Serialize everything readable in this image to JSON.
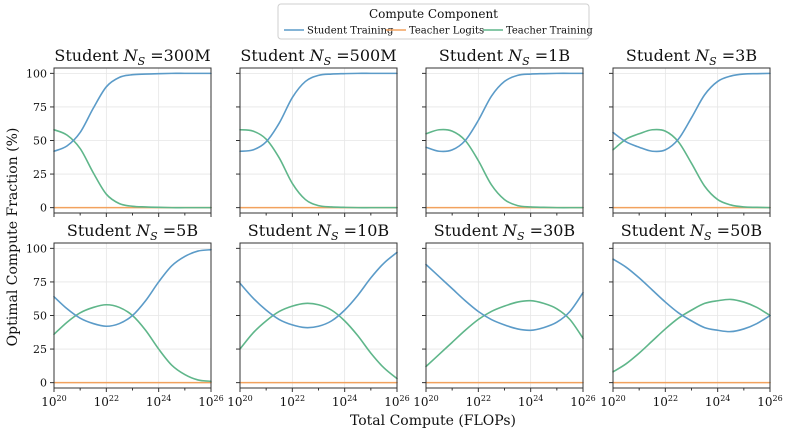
{
  "chart_data": {
    "type": "line",
    "figure_ylabel": "Optimal Compute Fraction (%)",
    "figure_xlabel": "Total Compute (FLOPs)",
    "legend": {
      "title": "Compute Component",
      "entries": [
        {
          "name": "Student Training",
          "color": "#5b9bc8"
        },
        {
          "name": "Teacher Logits",
          "color": "#f2a25e"
        },
        {
          "name": "Teacher Training",
          "color": "#5fb68a"
        }
      ],
      "placement": "top-center"
    },
    "xscale": "log",
    "xlim_exp": [
      20,
      26
    ],
    "ylim": [
      -4,
      104
    ],
    "x_ticks": [
      {
        "exp": 20,
        "base": "10",
        "sup": "20"
      },
      {
        "exp": 22,
        "base": "10",
        "sup": "22"
      },
      {
        "exp": 24,
        "base": "10",
        "sup": "24"
      },
      {
        "exp": 26,
        "base": "10",
        "sup": "26"
      }
    ],
    "y_ticks": [
      0,
      25,
      50,
      75,
      100
    ],
    "panels": [
      {
        "title_prefix": "Student ",
        "title_var": "N",
        "title_sub": "S",
        "title_suffix": " =300M",
        "x_exp": [
          20,
          20.5,
          21,
          21.5,
          22,
          22.5,
          23,
          23.5,
          24,
          24.5,
          25,
          25.5,
          26
        ],
        "series": [
          {
            "name": "Student Training",
            "values": [
              42,
              46,
              56,
              74,
              90,
              97,
              99,
              99.5,
              99.8,
              100,
              100,
              100,
              100
            ]
          },
          {
            "name": "Teacher Logits",
            "values": [
              0,
              0,
              0,
              0,
              0,
              0,
              0,
              0,
              0,
              0,
              0,
              0,
              0
            ]
          },
          {
            "name": "Teacher Training",
            "values": [
              58,
              54,
              44,
              26,
              10,
              3,
              1,
              0.5,
              0.2,
              0,
              0,
              0,
              0
            ]
          }
        ]
      },
      {
        "title_prefix": "Student ",
        "title_var": "N",
        "title_sub": "S",
        "title_suffix": " =500M",
        "x_exp": [
          20,
          20.5,
          21,
          21.5,
          22,
          22.5,
          23,
          23.5,
          24,
          24.5,
          25,
          25.5,
          26
        ],
        "series": [
          {
            "name": "Student Training",
            "values": [
              42,
              43,
              49,
              63,
              82,
              94,
              98.5,
              99.5,
              99.8,
              100,
              100,
              100,
              100
            ]
          },
          {
            "name": "Teacher Logits",
            "values": [
              0,
              0,
              0,
              0,
              0,
              0,
              0,
              0,
              0,
              0,
              0,
              0,
              0
            ]
          },
          {
            "name": "Teacher Training",
            "values": [
              58,
              57,
              51,
              37,
              18,
              6,
              1.5,
              0.5,
              0.2,
              0,
              0,
              0,
              0
            ]
          }
        ]
      },
      {
        "title_prefix": "Student ",
        "title_var": "N",
        "title_sub": "S",
        "title_suffix": " =1B",
        "x_exp": [
          20,
          20.5,
          21,
          21.5,
          22,
          22.5,
          23,
          23.5,
          24,
          24.5,
          25,
          25.5,
          26
        ],
        "series": [
          {
            "name": "Student Training",
            "values": [
              45,
              42,
              43,
              50,
              65,
              83,
              94,
              98.5,
              99.5,
              99.8,
              100,
              100,
              100
            ]
          },
          {
            "name": "Teacher Logits",
            "values": [
              0,
              0,
              0,
              0,
              0,
              0,
              0,
              0,
              0,
              0,
              0,
              0,
              0
            ]
          },
          {
            "name": "Teacher Training",
            "values": [
              55,
              58,
              57,
              50,
              35,
              17,
              6,
              1.5,
              0.5,
              0.2,
              0,
              0,
              0
            ]
          }
        ]
      },
      {
        "title_prefix": "Student ",
        "title_var": "N",
        "title_sub": "S",
        "title_suffix": " =3B",
        "x_exp": [
          20,
          20.5,
          21,
          21.5,
          22,
          22.5,
          23,
          23.5,
          24,
          24.5,
          25,
          25.5,
          26
        ],
        "series": [
          {
            "name": "Student Training",
            "values": [
              56,
              49,
              45,
              42,
              43,
              51,
              67,
              84,
              94,
              98,
              99.5,
              99.8,
              100
            ]
          },
          {
            "name": "Teacher Logits",
            "values": [
              0,
              0,
              0,
              0,
              0,
              0,
              0,
              0,
              0,
              0,
              0,
              0,
              0
            ]
          },
          {
            "name": "Teacher Training",
            "values": [
              43,
              51,
              55,
              58,
              57,
              49,
              33,
              16,
              6,
              2,
              0.5,
              0.2,
              0
            ]
          }
        ]
      },
      {
        "title_prefix": "Student ",
        "title_var": "N",
        "title_sub": "S",
        "title_suffix": " =5B",
        "x_exp": [
          20,
          20.5,
          21,
          21.5,
          22,
          22.5,
          23,
          23.5,
          24,
          24.5,
          25,
          25.5,
          26
        ],
        "series": [
          {
            "name": "Student Training",
            "values": [
              64,
              55,
              48,
              44,
              42,
              44,
              50,
              61,
              75,
              87,
              94,
              98,
              99
            ]
          },
          {
            "name": "Teacher Logits",
            "values": [
              0,
              0,
              0,
              0,
              0,
              0,
              0,
              0,
              0,
              0,
              0,
              0,
              0
            ]
          },
          {
            "name": "Teacher Training",
            "values": [
              36,
              45,
              52,
              56,
              58,
              56,
              50,
              39,
              25,
              13,
              6,
              2,
              1
            ]
          }
        ]
      },
      {
        "title_prefix": "Student ",
        "title_var": "N",
        "title_sub": "S",
        "title_suffix": " =10B",
        "x_exp": [
          20,
          20.5,
          21,
          21.5,
          22,
          22.5,
          23,
          23.5,
          24,
          24.5,
          25,
          25.5,
          26
        ],
        "series": [
          {
            "name": "Student Training",
            "values": [
              74,
              63,
              54,
              47,
              43,
              41,
              42,
              46,
              54,
              65,
              78,
              89,
              97
            ]
          },
          {
            "name": "Teacher Logits",
            "values": [
              0,
              0,
              0,
              0,
              0,
              0,
              0,
              0,
              0,
              0,
              0,
              0,
              0
            ]
          },
          {
            "name": "Teacher Training",
            "values": [
              25,
              37,
              46,
              53,
              57,
              59,
              58,
              54,
              46,
              35,
              22,
              11,
              3
            ]
          }
        ]
      },
      {
        "title_prefix": "Student ",
        "title_var": "N",
        "title_sub": "S",
        "title_suffix": " =30B",
        "x_exp": [
          20,
          20.5,
          21,
          21.5,
          22,
          22.5,
          23,
          23.5,
          24,
          24.5,
          25,
          25.5,
          26
        ],
        "series": [
          {
            "name": "Student Training",
            "values": [
              88,
              79,
              70,
              61,
              53,
              47,
              43,
              40,
              39,
              41,
              45,
              53,
              67
            ]
          },
          {
            "name": "Teacher Logits",
            "values": [
              0,
              0,
              0,
              0,
              0,
              0,
              0,
              0,
              0,
              0,
              0,
              0,
              0
            ]
          },
          {
            "name": "Teacher Training",
            "values": [
              12,
              21,
              30,
              39,
              47,
              53,
              57,
              60,
              61,
              59,
              55,
              47,
              33
            ]
          }
        ]
      },
      {
        "title_prefix": "Student ",
        "title_var": "N",
        "title_sub": "S",
        "title_suffix": " =50B",
        "x_exp": [
          20,
          20.5,
          21,
          21.5,
          22,
          22.5,
          23,
          23.5,
          24,
          24.5,
          25,
          25.5,
          26
        ],
        "series": [
          {
            "name": "Student Training",
            "values": [
              92,
              86,
              78,
              69,
              60,
              52,
              46,
              41,
              39,
              38,
              40,
              44,
              50
            ]
          },
          {
            "name": "Teacher Logits",
            "values": [
              0,
              0,
              0,
              0,
              0,
              0,
              0,
              0,
              0,
              0,
              0,
              0,
              0
            ]
          },
          {
            "name": "Teacher Training",
            "values": [
              8,
              14,
              22,
              31,
              40,
              48,
              54,
              59,
              61,
              62,
              60,
              56,
              50
            ]
          }
        ]
      }
    ]
  }
}
